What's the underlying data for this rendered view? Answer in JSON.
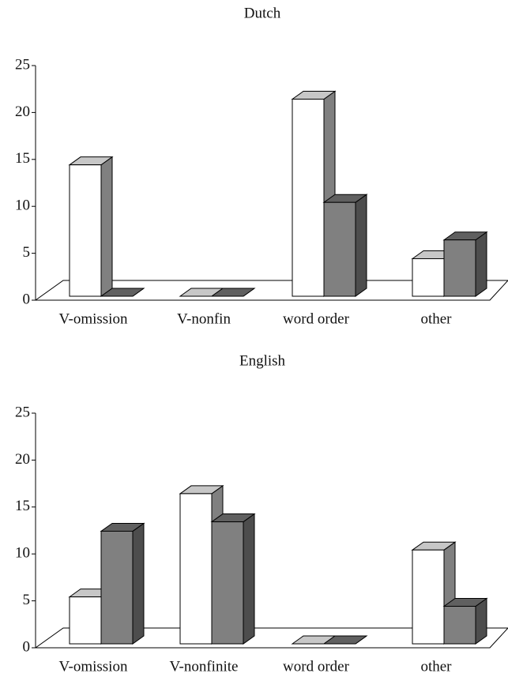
{
  "chart_data": [
    {
      "type": "bar3d",
      "title": "Dutch",
      "categories": [
        "V-omission",
        "V-nonfin",
        "word order",
        "other"
      ],
      "series": [
        {
          "color": "#ffffff",
          "values": [
            14,
            0,
            21,
            4
          ]
        },
        {
          "color": "#808080",
          "values": [
            0,
            0,
            10,
            6
          ]
        }
      ],
      "ylim": [
        0,
        25
      ],
      "yticks": [
        0,
        5,
        10,
        15,
        20,
        25
      ]
    },
    {
      "type": "bar3d",
      "title": "English",
      "categories": [
        "V-omission",
        "V-nonfinite",
        "word order",
        "other"
      ],
      "series": [
        {
          "color": "#ffffff",
          "values": [
            5,
            16,
            0,
            10
          ]
        },
        {
          "color": "#808080",
          "values": [
            12,
            13,
            0,
            4
          ]
        }
      ],
      "ylim": [
        0,
        25
      ],
      "yticks": [
        0,
        5,
        10,
        15,
        20,
        25
      ]
    }
  ]
}
